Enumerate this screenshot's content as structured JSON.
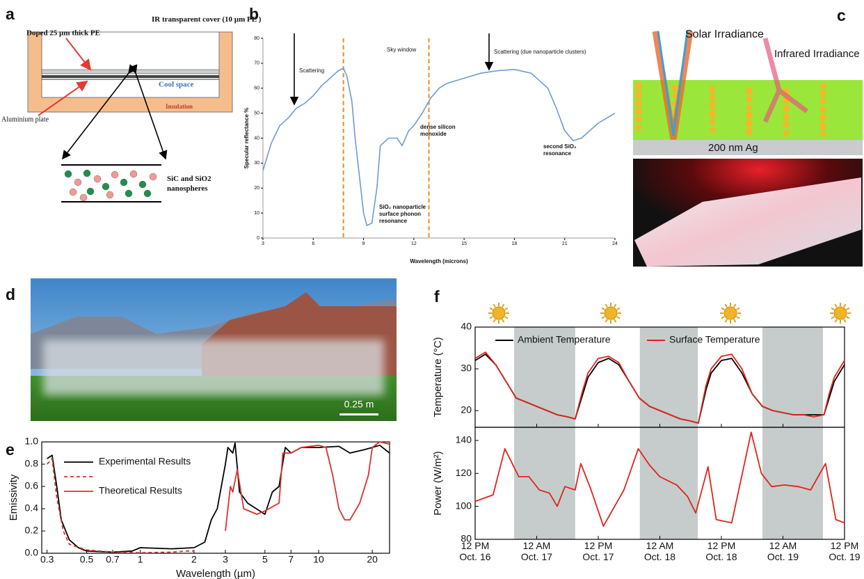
{
  "panel_labels": [
    "a",
    "b",
    "c",
    "d",
    "e",
    "f"
  ],
  "panel_a": {
    "cover_label": "IR transparent cover (10 µm PE )",
    "pe_label": "Doped 25 µm thick PE",
    "cool_space": "Cool space",
    "insulation": "Insulation",
    "plate_label": "Aluminium plate",
    "nanospheres_label": [
      "SiC and SiO2",
      "nanospheres"
    ]
  },
  "panel_c": {
    "solar": "Solar Irradiance",
    "infrared": "Infrared Irradiance",
    "substrate": "200 nm Ag"
  },
  "panel_d": {
    "scale_bar": "0.25 m"
  },
  "chart_data": [
    {
      "type": "line",
      "xlabel": "Wavelength (microns)",
      "ylabel": "Specular reflectance %",
      "x": [
        3,
        3.5,
        4,
        4.5,
        5,
        5.5,
        6,
        6.5,
        7,
        7.5,
        7.8,
        8,
        8.3,
        8.5,
        8.8,
        9,
        9.2,
        9.5,
        9.8,
        10,
        10.5,
        11,
        11.3,
        11.7,
        12,
        12.5,
        13,
        13.5,
        14,
        15,
        16,
        17,
        18,
        19,
        20,
        20.5,
        21,
        21.5,
        22,
        22.5,
        23,
        24
      ],
      "series": [
        {
          "color": "#6d9bd1",
          "values": [
            27,
            38,
            45,
            48,
            52,
            54,
            57,
            61,
            64,
            67,
            68,
            65,
            55,
            40,
            22,
            10,
            5,
            6,
            20,
            37,
            40,
            40,
            37,
            43,
            45,
            50,
            56,
            60,
            62,
            64,
            66,
            67,
            67.5,
            66,
            60,
            52,
            43,
            39,
            40,
            43,
            46,
            50
          ]
        }
      ],
      "reference_lines": [
        7.8,
        12.9
      ],
      "reference_color": "#f08a24",
      "annotations": [
        [
          "Scattering"
        ],
        [
          "Sky window"
        ],
        [
          "Scattering (due nanoparticle clusters)"
        ],
        [
          "dense silicon",
          "monoxide"
        ],
        [
          "SiO₂ nanoparticle",
          "surface phonon",
          "resonance"
        ],
        [
          "second SiO₂",
          "resonance"
        ]
      ],
      "xlim": [
        3,
        24
      ],
      "xticks": [
        3,
        6,
        9,
        12,
        15,
        18,
        21,
        24
      ],
      "ylim": [
        0,
        80
      ],
      "yticks": [
        0,
        10,
        20,
        30,
        40,
        50,
        60,
        70,
        80
      ]
    },
    {
      "type": "line",
      "xlabel": "Wavelength (µm)",
      "ylabel": "Emissivity",
      "xscale": "log",
      "xlim": [
        0.28,
        25
      ],
      "xticks": [
        0.3,
        0.5,
        0.7,
        1,
        2,
        3,
        5,
        7,
        10,
        20
      ],
      "ylim": [
        0,
        1
      ],
      "yticks": [
        {
          "value": 0,
          "label": "0.0"
        },
        0.2,
        0.4,
        0.6,
        0.8,
        {
          "value": 1,
          "label": "1.0"
        }
      ],
      "series": [
        {
          "name": "Experimental Results",
          "color": "#000000",
          "x": [
            0.3,
            0.32,
            0.34,
            0.36,
            0.4,
            0.45,
            0.5,
            0.7,
            0.9,
            1,
            1.5,
            2,
            2.3,
            2.5,
            2.7,
            3,
            3.1,
            3.3,
            3.4,
            3.6,
            4,
            5,
            5.5,
            6,
            6.5,
            7,
            8,
            10,
            13,
            15,
            18,
            20,
            22,
            25
          ],
          "values": [
            0.85,
            0.88,
            0.6,
            0.3,
            0.12,
            0.05,
            0.02,
            0.01,
            0.02,
            0.05,
            0.04,
            0.05,
            0.1,
            0.3,
            0.4,
            0.8,
            0.95,
            0.9,
            0.99,
            0.55,
            0.45,
            0.35,
            0.55,
            0.6,
            0.95,
            0.9,
            0.95,
            0.95,
            0.96,
            0.9,
            0.93,
            0.95,
            0.97,
            0.9
          ]
        },
        {
          "color": "#d9302c",
          "style": "dashed",
          "x": [
            0.3,
            0.32,
            0.34,
            0.37,
            0.4,
            0.5,
            0.7,
            1,
            1.5,
            1.8,
            2
          ],
          "values": [
            0.8,
            0.85,
            0.5,
            0.2,
            0.08,
            0.03,
            0.01,
            0.005,
            0.01,
            0.02,
            0.02
          ]
        },
        {
          "name": "Theoretical Results",
          "color": "#d9302c",
          "x": [
            3,
            3.2,
            3.3,
            3.5,
            3.8,
            4.5,
            5,
            6,
            6.3,
            7,
            8,
            10,
            11,
            12,
            13,
            14,
            15,
            17,
            19,
            20,
            22,
            25
          ],
          "values": [
            0.2,
            0.6,
            0.55,
            0.75,
            0.4,
            0.35,
            0.38,
            0.45,
            0.9,
            0.9,
            0.95,
            0.97,
            0.95,
            0.7,
            0.4,
            0.3,
            0.3,
            0.45,
            0.7,
            0.95,
            1,
            0.98
          ]
        }
      ]
    },
    {
      "type": "line",
      "ylabel": "Temperature (°C)",
      "xlim": [
        0,
        72
      ],
      "ylim": [
        16,
        40
      ],
      "yticks": [
        20,
        30,
        40
      ],
      "shaded_ranges": [
        [
          7.6,
          19.5
        ],
        [
          32.1,
          43.4
        ],
        [
          56,
          67.8
        ]
      ],
      "shade_color": "#c5cccb",
      "x": [
        0,
        2,
        4,
        6,
        8,
        10,
        12,
        14,
        16,
        18,
        19.5,
        21,
        22,
        24,
        26,
        28,
        30,
        32,
        34,
        36,
        38,
        40,
        42,
        43.5,
        45,
        46,
        48,
        50,
        52,
        54,
        56,
        58,
        60,
        62,
        64,
        66,
        68,
        69,
        70,
        72
      ],
      "series": [
        {
          "name": "Ambient Temperature",
          "color": "#000000",
          "values": [
            32,
            33.5,
            31,
            27,
            23,
            22,
            21,
            20,
            19,
            18.5,
            18,
            24,
            28,
            31.5,
            32.5,
            31,
            27,
            23,
            21,
            20,
            19,
            18,
            17.5,
            17,
            25,
            29,
            32,
            32.5,
            29,
            24,
            21,
            20,
            19.5,
            19,
            19,
            19,
            19,
            23,
            27,
            31
          ]
        },
        {
          "name": "Surface Temperature",
          "color": "#e0231c",
          "values": [
            32.5,
            34,
            31,
            27,
            23,
            22,
            21,
            20,
            19,
            18.5,
            18,
            25,
            29,
            32.5,
            33,
            31.5,
            27,
            23,
            21,
            20,
            19,
            18,
            17.5,
            17,
            26,
            30,
            33,
            33.5,
            30,
            24,
            21,
            20,
            19.5,
            19,
            19,
            18.5,
            19,
            24,
            28,
            32
          ]
        }
      ]
    },
    {
      "type": "line",
      "ylabel": "Power (W/m²)",
      "xlim": [
        0,
        72
      ],
      "xticks": [
        {
          "value": 0,
          "label": [
            "12 PM",
            "Oct. 16"
          ]
        },
        {
          "value": 12,
          "label": [
            "12 AM",
            "Oct. 17"
          ]
        },
        {
          "value": 24,
          "label": [
            "12 PM",
            "Oct. 17"
          ]
        },
        {
          "value": 36,
          "label": [
            "12 AM",
            "Oct. 18"
          ]
        },
        {
          "value": 48,
          "label": [
            "12 PM",
            "Oct. 18"
          ]
        },
        {
          "value": 60,
          "label": [
            "12 AM",
            "Oct. 19"
          ]
        },
        {
          "value": 72,
          "label": [
            "12 PM",
            "Oct. 19"
          ]
        }
      ],
      "ylim": [
        80,
        148
      ],
      "yticks": [
        80,
        100,
        120,
        140
      ],
      "x": [
        0,
        3.5,
        5.8,
        8.5,
        10.5,
        12.5,
        14.5,
        16,
        17.5,
        19.5,
        20.6,
        22.6,
        25,
        29,
        31.8,
        34,
        36,
        39.3,
        41.4,
        43,
        45.4,
        47,
        50,
        53.8,
        55.8,
        57.8,
        60.3,
        63,
        65.4,
        68.3,
        70.3,
        72
      ],
      "series": [
        {
          "color": "#e0231c",
          "values": [
            103,
            107,
            135,
            118,
            118,
            110,
            108,
            100,
            112,
            110,
            126,
            110,
            88,
            110,
            135,
            125,
            118,
            113,
            106,
            96,
            124,
            92,
            90,
            145,
            120,
            112,
            113,
            112,
            110,
            126,
            92,
            90
          ]
        }
      ]
    }
  ]
}
